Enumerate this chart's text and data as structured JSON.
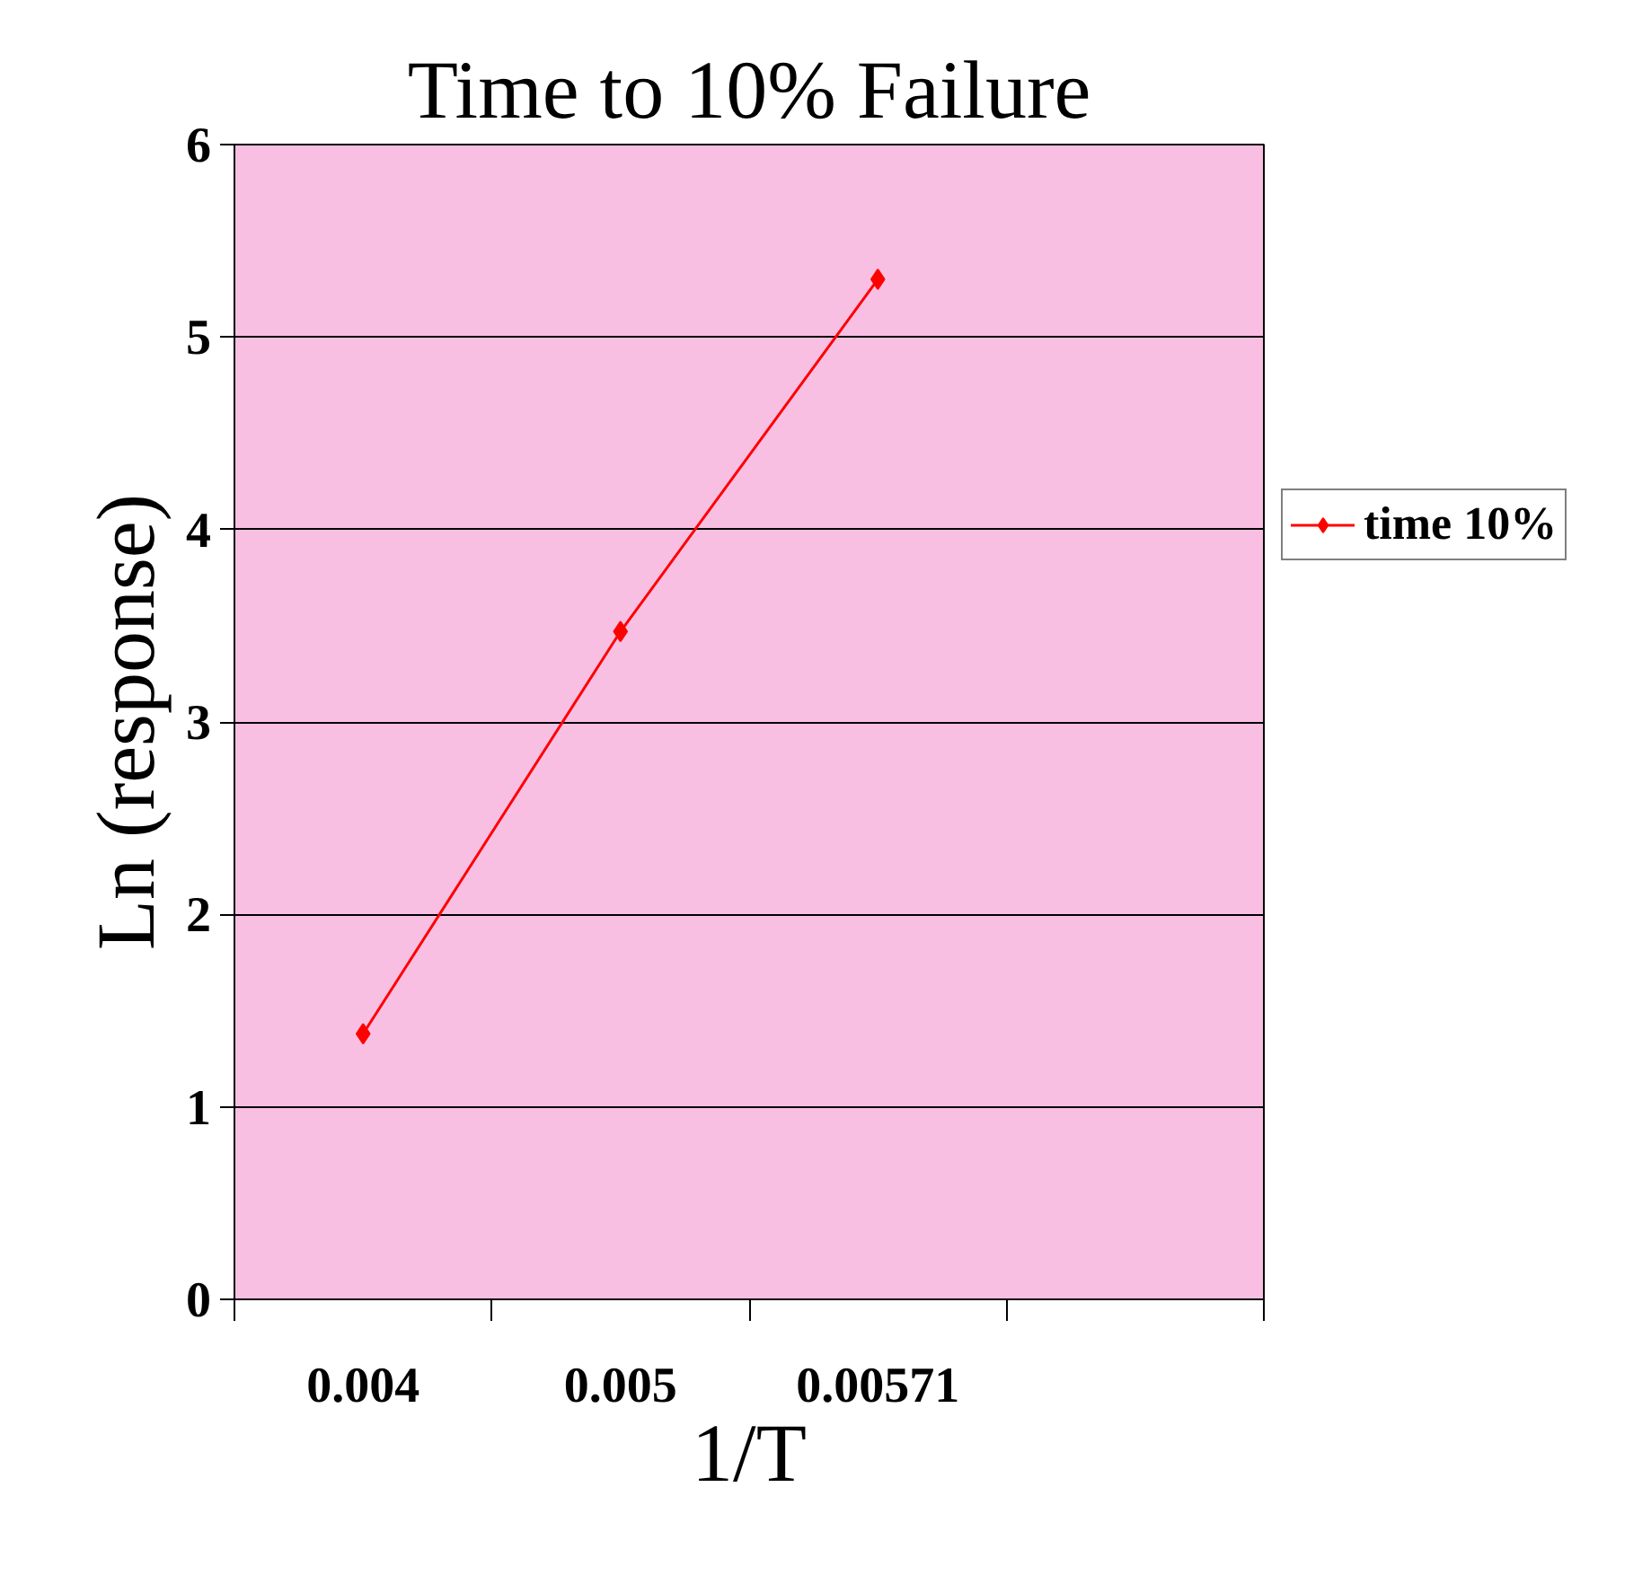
{
  "chart_data": {
    "type": "line",
    "title": "Time to 10% Failure",
    "xlabel": "1/T",
    "ylabel": "Ln (response)",
    "categories": [
      "0.004",
      "0.005",
      "0.00571",
      null
    ],
    "series": [
      {
        "name": "time 10%",
        "color": "#ff0000",
        "values": [
          1.38,
          3.47,
          5.3,
          null
        ]
      }
    ],
    "ylim": [
      0,
      6
    ],
    "yticks": [
      0,
      1,
      2,
      3,
      4,
      5,
      6
    ],
    "grid": "y",
    "legend": "right",
    "marker": "diamond",
    "line_style": "solid"
  }
}
